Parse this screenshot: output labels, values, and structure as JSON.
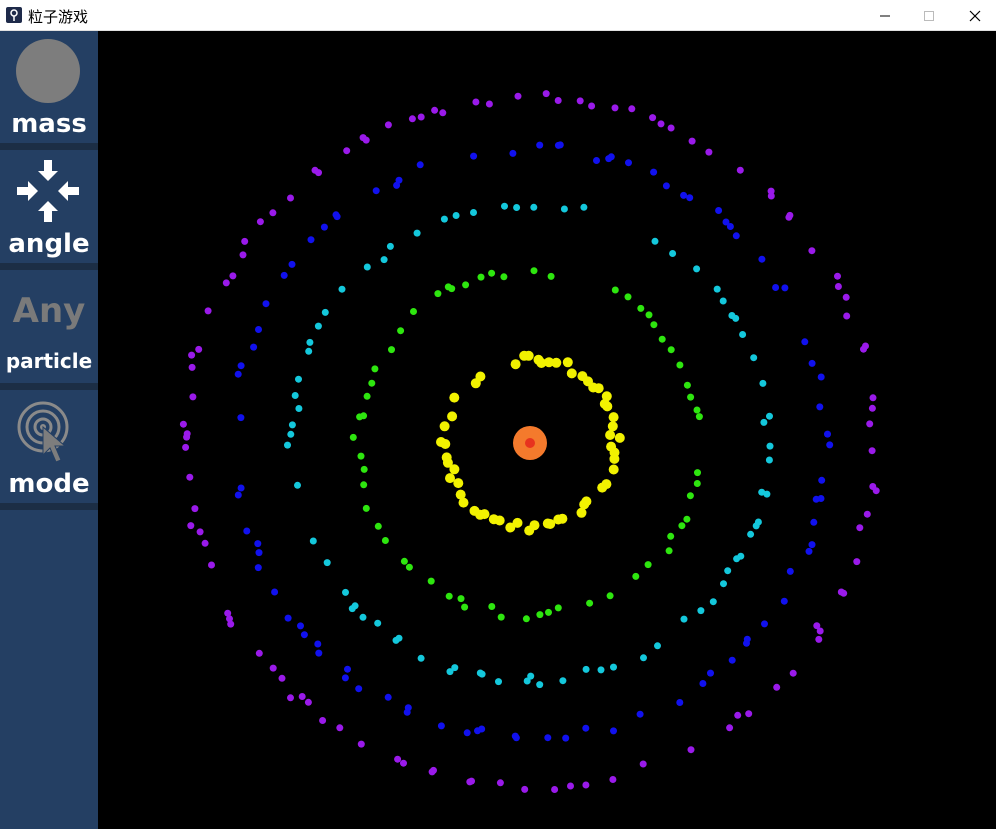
{
  "window": {
    "title": "粒子游戏"
  },
  "sidebar": {
    "mass_label": "mass",
    "angle_label": "angle",
    "any_label": "Any",
    "particle_label": "particle",
    "mode_label": "mode"
  },
  "colors": {
    "sidebar_bg": "#243f63",
    "core": "#e7331e",
    "core_glow": "#f47a2c",
    "rings": [
      "#f2f200",
      "#2ee60f",
      "#14c8dc",
      "#1111ee",
      "#9a1aea"
    ]
  },
  "rings": [
    {
      "name": "yellow",
      "radius": 85,
      "count": 70
    },
    {
      "name": "green",
      "radius": 172,
      "count": 80
    },
    {
      "name": "cyan",
      "radius": 238,
      "count": 100
    },
    {
      "name": "blue",
      "radius": 295,
      "count": 110
    },
    {
      "name": "purple",
      "radius": 345,
      "count": 130
    }
  ]
}
